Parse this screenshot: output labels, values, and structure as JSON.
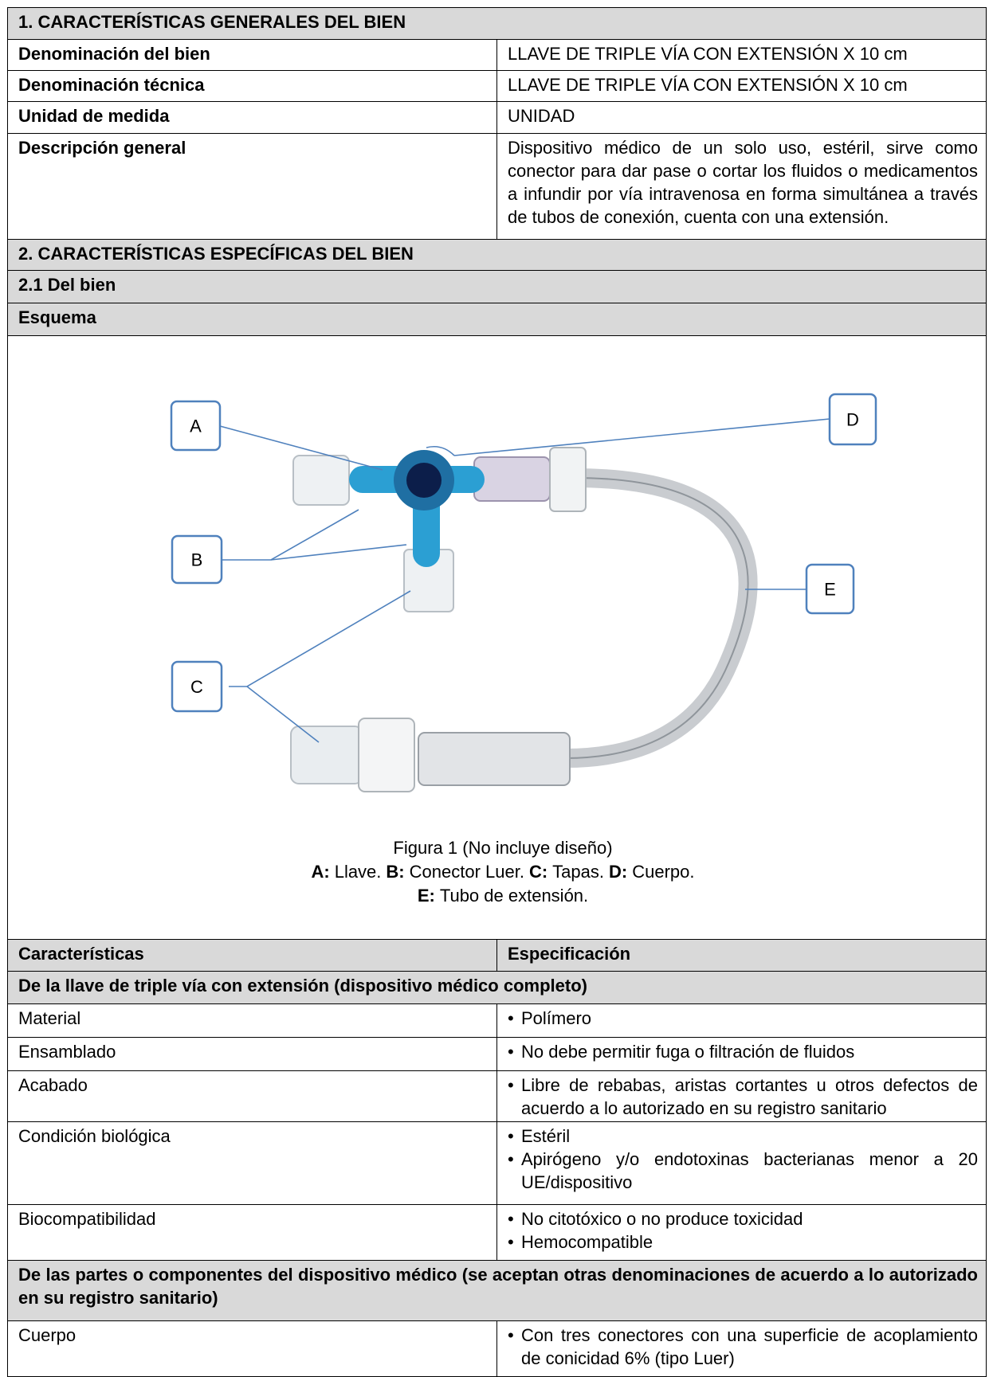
{
  "section1": {
    "title": "1. CARACTERÍSTICAS GENERALES DEL BIEN",
    "rows": [
      [
        "Denominación del bien",
        "LLAVE DE TRIPLE VÍA CON EXTENSIÓN X 10 cm"
      ],
      [
        "Denominación técnica",
        "LLAVE DE TRIPLE VÍA CON EXTENSIÓN X 10 cm"
      ],
      [
        "Unidad de medida",
        "UNIDAD"
      ],
      [
        "Descripción general",
        "Dispositivo médico de un solo uso, estéril, sirve como conector para dar pase o cortar los fluidos o medicamentos a infundir por vía intravenosa en forma simultánea a través de tubos de conexión, cuenta con una extensión."
      ]
    ]
  },
  "section2": {
    "title": "2. CARACTERÍSTICAS ESPECÍFICAS DEL BIEN",
    "subtitle": "2.1 Del bien",
    "scheme_title": "Esquema",
    "diagram_labels": [
      "A",
      "B",
      "C",
      "D",
      "E"
    ],
    "caption": {
      "title": "Figura 1 (No incluye diseño)",
      "lines": [
        [
          {
            "key": "A:",
            "text": "Llave."
          },
          {
            "key": "B:",
            "text": "Conector Luer."
          },
          {
            "key": "C:",
            "text": "Tapas."
          },
          {
            "key": "D:",
            "text": "Cuerpo."
          }
        ],
        [
          {
            "key": "E:",
            "text": "Tubo de extensión."
          }
        ]
      ]
    }
  },
  "spec_table": {
    "headers": [
      "Características",
      "Especificación"
    ],
    "groups": [
      {
        "title": "De la llave de triple vía con extensión (dispositivo médico completo)",
        "rows": [
          {
            "name": "Material",
            "items": [
              "Polímero"
            ]
          },
          {
            "name": "Ensamblado",
            "items": [
              "No debe permitir fuga o filtración de fluidos"
            ]
          },
          {
            "name": "Acabado",
            "items": [
              "Libre de rebabas, aristas cortantes u otros defectos de acuerdo a lo autorizado en su registro sanitario"
            ]
          },
          {
            "name": "Condición biológica",
            "items": [
              "Estéril",
              "Apirógeno y/o endotoxinas bacterianas menor a 20 UE/dispositivo"
            ]
          },
          {
            "name": "Biocompatibilidad",
            "items": [
              "No citotóxico o no produce toxicidad",
              "Hemocompatible"
            ]
          }
        ]
      },
      {
        "title": "De las partes o componentes del dispositivo médico (se aceptan otras denominaciones de acuerdo a lo autorizado en su registro sanitario)",
        "rows": [
          {
            "name": "Cuerpo",
            "items": [
              "Con tres conectores con una superficie de acoplamiento de conicidad 6% (tipo Luer)"
            ]
          }
        ]
      }
    ]
  }
}
